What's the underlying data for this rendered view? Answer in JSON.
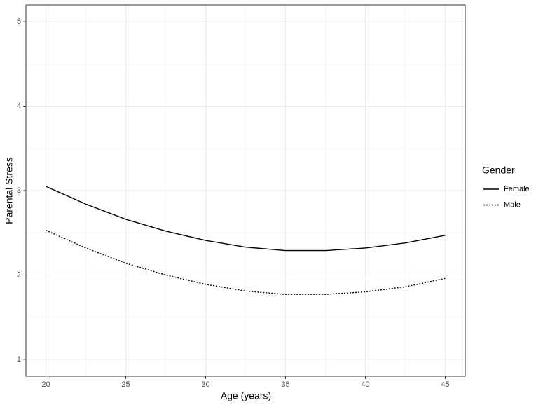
{
  "chart_data": {
    "type": "line",
    "x_label": "Age (years)",
    "y_label": "Parental Stress",
    "x": [
      20,
      22.5,
      25,
      27.5,
      30,
      32.5,
      35,
      37.5,
      40,
      42.5,
      45
    ],
    "series": [
      {
        "name": "Female",
        "color": "#000000",
        "linetype": "solid",
        "values": [
          3.05,
          2.84,
          2.66,
          2.52,
          2.41,
          2.33,
          2.29,
          2.29,
          2.32,
          2.38,
          2.47
        ]
      },
      {
        "name": "Male",
        "color": "#000000",
        "linetype": "dotted",
        "values": [
          2.53,
          2.32,
          2.14,
          2.0,
          1.89,
          1.81,
          1.77,
          1.77,
          1.8,
          1.86,
          1.96
        ]
      }
    ],
    "legend_title": "Gender",
    "legend": "right",
    "xlim": [
      18.75,
      46.25
    ],
    "xticks": [
      20,
      25,
      30,
      35,
      40,
      45
    ],
    "x_minor_ticks": [
      22.5,
      27.5,
      32.5,
      37.5,
      42.5
    ],
    "ylim": [
      0.8,
      5.2
    ],
    "yticks": [
      1,
      2,
      3,
      4,
      5
    ],
    "y_minor_ticks": [
      1.5,
      2.5,
      3.5,
      4.5
    ],
    "grid": true
  }
}
